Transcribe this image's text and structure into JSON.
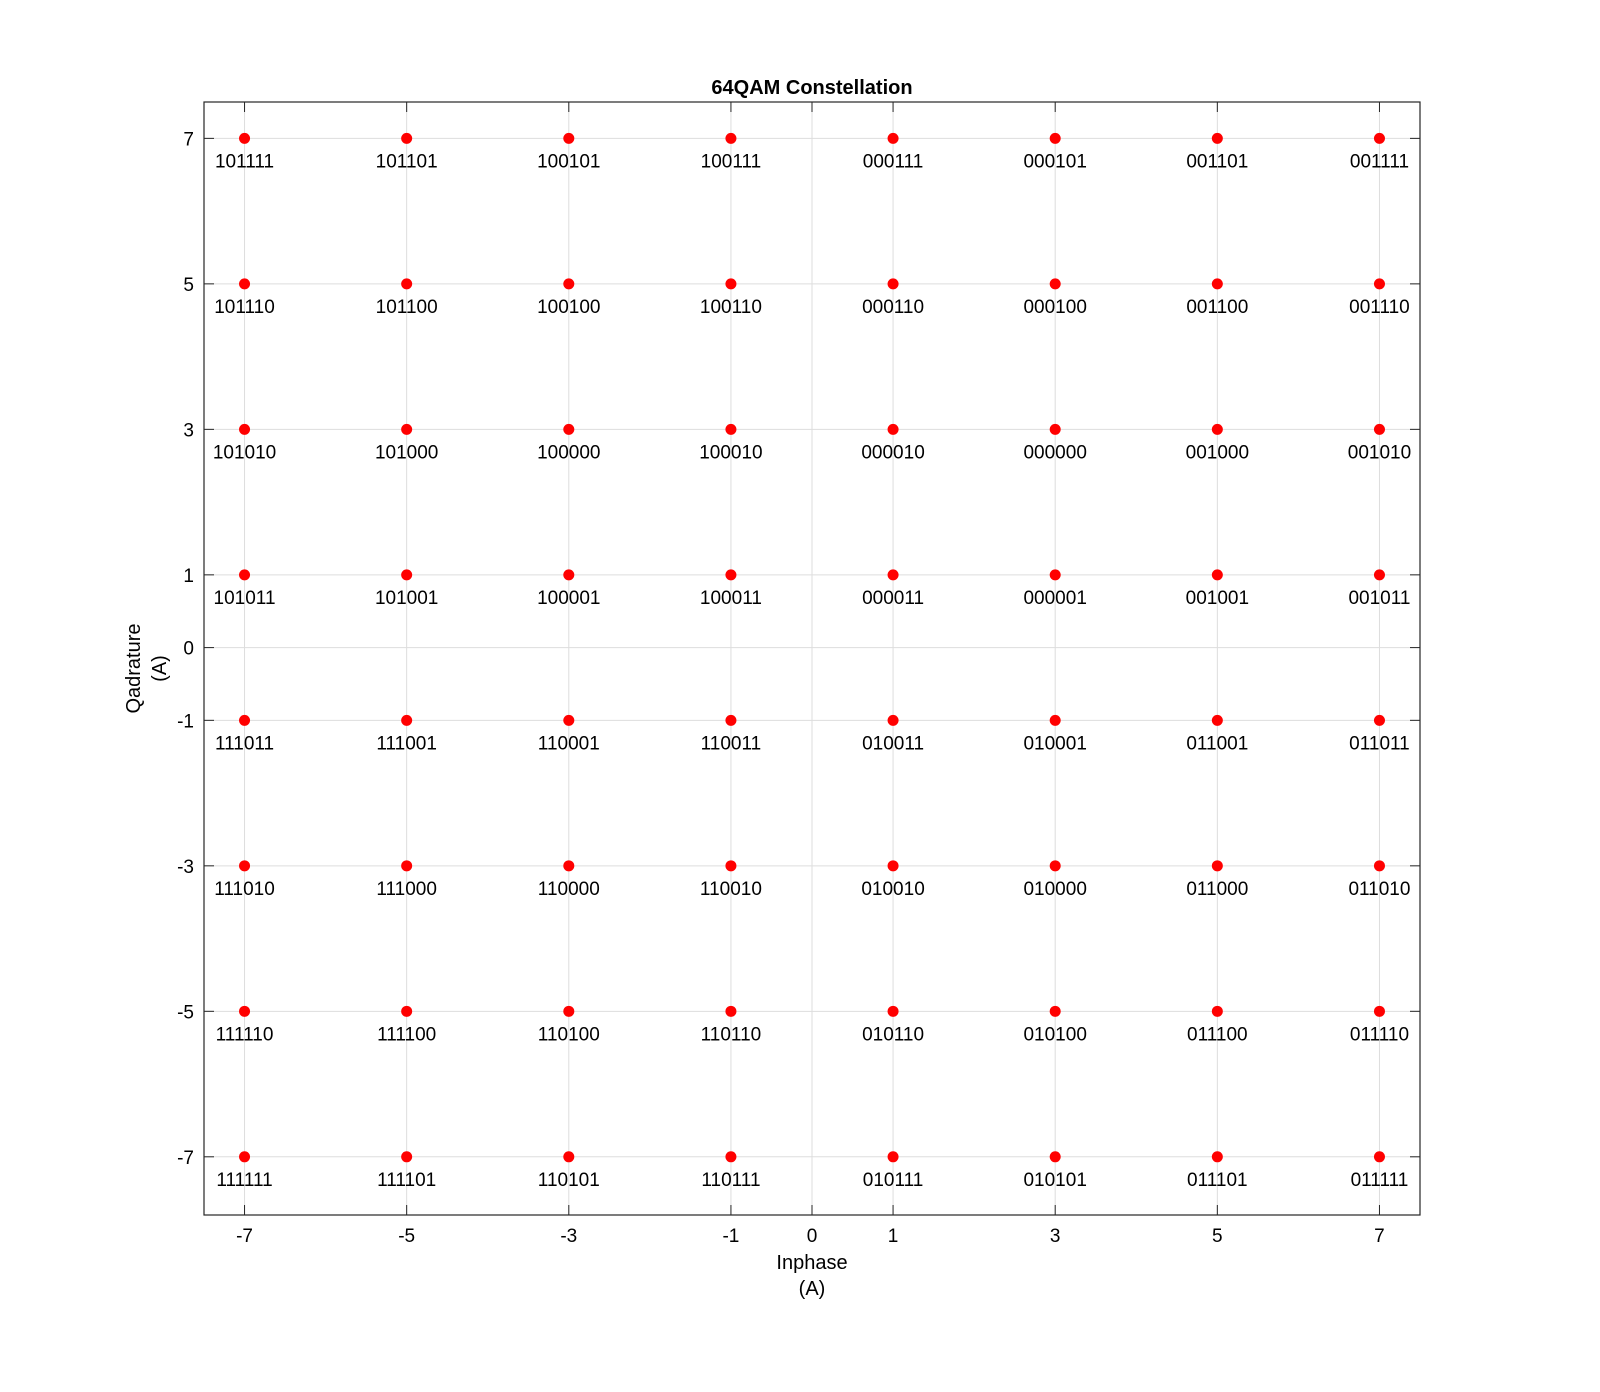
{
  "chart_data": {
    "type": "scatter",
    "title": "64QAM Constellation",
    "xlabel": [
      "Inphase",
      "(A)"
    ],
    "ylabel": [
      "Qadrature",
      "(A)"
    ],
    "xlim": [
      -7.5,
      7.5
    ],
    "ylim": [
      -7.8,
      7.5
    ],
    "xticks": [
      -7,
      -5,
      -3,
      -1,
      0,
      1,
      3,
      5,
      7
    ],
    "yticks": [
      -7,
      -5,
      -3,
      -1,
      0,
      1,
      3,
      5,
      7
    ],
    "grid": true,
    "marker_color": "#ff0000",
    "grid_color": "#dddddd",
    "x_levels": [
      -7,
      -5,
      -3,
      -1,
      1,
      3,
      5,
      7
    ],
    "y_levels": [
      7,
      5,
      3,
      1,
      -1,
      -3,
      -5,
      -7
    ],
    "labels": [
      [
        "101111",
        "101101",
        "100101",
        "100111",
        "000111",
        "000101",
        "001101",
        "001111"
      ],
      [
        "101110",
        "101100",
        "100100",
        "100110",
        "000110",
        "000100",
        "001100",
        "001110"
      ],
      [
        "101010",
        "101000",
        "100000",
        "100010",
        "000010",
        "000000",
        "001000",
        "001010"
      ],
      [
        "101011",
        "101001",
        "100001",
        "100011",
        "000011",
        "000001",
        "001001",
        "001011"
      ],
      [
        "111011",
        "111001",
        "110001",
        "110011",
        "010011",
        "010001",
        "011001",
        "011011"
      ],
      [
        "111010",
        "111000",
        "110000",
        "110010",
        "010010",
        "010000",
        "011000",
        "011010"
      ],
      [
        "111110",
        "111100",
        "110100",
        "110110",
        "010110",
        "010100",
        "011100",
        "011110"
      ],
      [
        "111111",
        "111101",
        "110101",
        "110111",
        "010111",
        "010101",
        "011101",
        "011111"
      ]
    ]
  }
}
